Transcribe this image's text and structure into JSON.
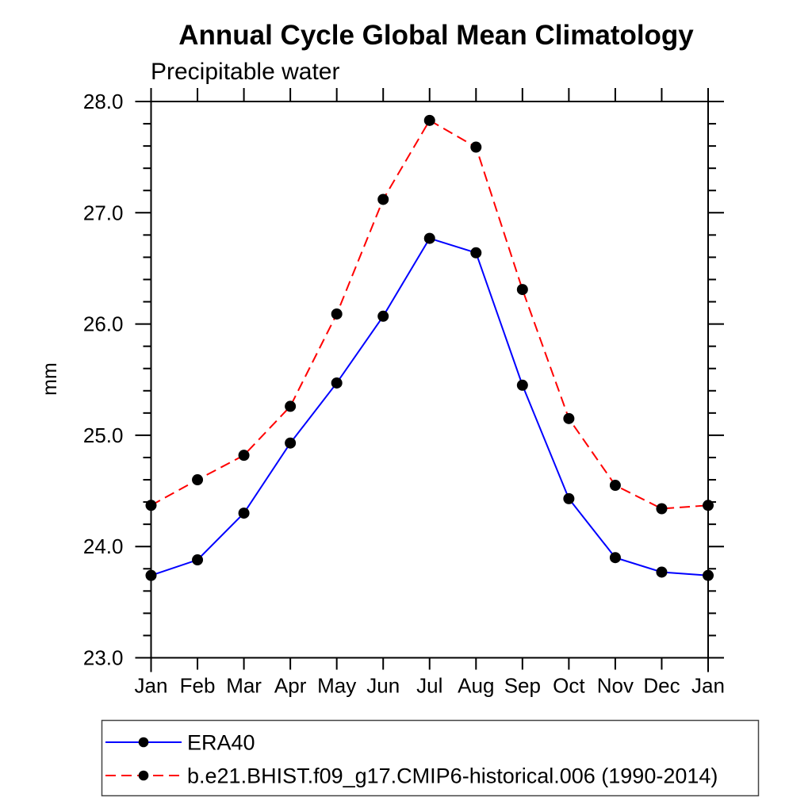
{
  "page": {
    "background": "#ffffff",
    "text_color": "#000000"
  },
  "chart_data": {
    "type": "line",
    "title": "Annual Cycle Global Mean Climatology",
    "subtitle": "Precipitable water",
    "xlabel": "",
    "ylabel": "mm",
    "categories": [
      "Jan",
      "Feb",
      "Mar",
      "Apr",
      "May",
      "Jun",
      "Jul",
      "Aug",
      "Sep",
      "Oct",
      "Nov",
      "Dec",
      "Jan"
    ],
    "ylim": [
      23.0,
      28.0
    ],
    "y_minor_step": 0.2,
    "grid": false,
    "legend_position": "bottom-left-box",
    "yticks": [
      {
        "value": 23.0,
        "label": "23.0"
      },
      {
        "value": 24.0,
        "label": "24.0"
      },
      {
        "value": 25.0,
        "label": "25.0"
      },
      {
        "value": 26.0,
        "label": "26.0"
      },
      {
        "value": 27.0,
        "label": "27.0"
      },
      {
        "value": 28.0,
        "label": "28.0"
      }
    ],
    "series": [
      {
        "name": "ERA40",
        "color": "#0000ff",
        "line_style": "solid",
        "marker": "filled-circle",
        "marker_color": "#000000",
        "values": [
          23.74,
          23.88,
          24.3,
          24.93,
          25.47,
          26.07,
          26.77,
          26.64,
          25.45,
          24.43,
          23.9,
          23.77,
          23.74
        ]
      },
      {
        "name": "b.e21.BHIST.f09_g17.CMIP6-historical.006 (1990-2014)",
        "color": "#ff0000",
        "line_style": "dashed",
        "marker": "filled-circle",
        "marker_color": "#000000",
        "values": [
          24.37,
          24.6,
          24.82,
          25.26,
          26.09,
          27.12,
          27.83,
          27.59,
          26.31,
          25.15,
          24.55,
          24.34,
          24.37
        ]
      }
    ]
  }
}
